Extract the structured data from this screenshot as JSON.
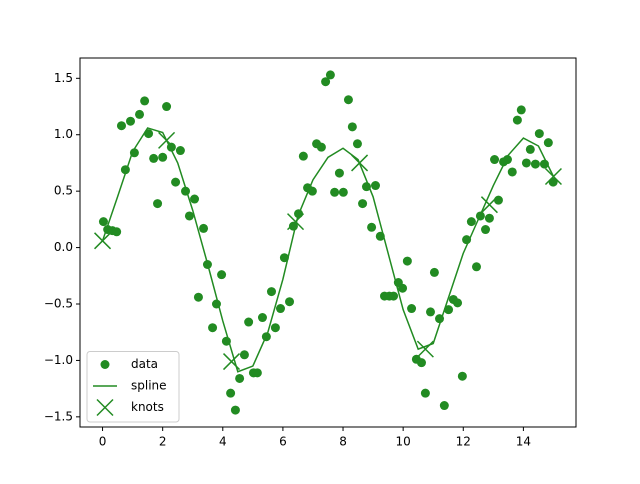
{
  "chart_data": {
    "type": "scatter",
    "xlim": [
      -0.75,
      15.75
    ],
    "ylim": [
      -1.59,
      1.68
    ],
    "xticks": [
      0,
      2,
      4,
      6,
      8,
      10,
      12,
      14
    ],
    "yticks": [
      {
        "value": -1.5,
        "label": "−1.5"
      },
      {
        "value": -1.0,
        "label": "−1.0"
      },
      {
        "value": -0.5,
        "label": "−0.5"
      },
      {
        "value": 0.0,
        "label": "0.0"
      },
      {
        "value": 0.5,
        "label": "0.5"
      },
      {
        "value": 1.0,
        "label": "1.0"
      },
      {
        "value": 1.5,
        "label": "1.5"
      }
    ],
    "grid": false,
    "legend": "lower left",
    "series": [
      {
        "name": "data",
        "type": "scatter",
        "color": "#228b22",
        "x": [
          0.03,
          0.17,
          0.33,
          0.47,
          0.63,
          0.76,
          0.93,
          1.06,
          1.23,
          1.4,
          1.53,
          1.7,
          1.83,
          2.0,
          2.13,
          2.29,
          2.43,
          2.59,
          2.76,
          2.89,
          3.06,
          3.19,
          3.36,
          3.49,
          3.66,
          3.79,
          3.96,
          4.12,
          4.26,
          4.42,
          4.56,
          4.72,
          4.86,
          5.02,
          5.15,
          5.32,
          5.45,
          5.62,
          5.75,
          5.92,
          6.05,
          6.22,
          6.35,
          6.52,
          6.68,
          6.82,
          6.98,
          7.12,
          7.28,
          7.42,
          7.58,
          7.72,
          7.88,
          8.01,
          8.18,
          8.31,
          8.48,
          8.65,
          8.78,
          8.95,
          9.08,
          9.24,
          9.38,
          9.54,
          9.68,
          9.84,
          9.98,
          10.14,
          10.28,
          10.44,
          10.61,
          10.74,
          10.91,
          11.04,
          11.21,
          11.37,
          11.51,
          11.67,
          11.81,
          11.97,
          12.11,
          12.27,
          12.44,
          12.57,
          12.74,
          12.87,
          13.04,
          13.17,
          13.34,
          13.47,
          13.63,
          13.8,
          13.93,
          14.1,
          14.23,
          14.4,
          14.53,
          14.7,
          14.83,
          14.99
        ],
        "values": [
          0.23,
          0.16,
          0.15,
          0.14,
          1.08,
          0.69,
          1.12,
          0.84,
          1.18,
          1.3,
          1.01,
          0.79,
          0.39,
          0.8,
          1.25,
          0.89,
          0.58,
          0.86,
          0.5,
          0.28,
          0.43,
          -0.44,
          0.17,
          -0.15,
          -0.71,
          -0.5,
          -0.24,
          -0.83,
          -1.29,
          -1.44,
          -1.16,
          -0.95,
          -0.66,
          -1.11,
          -1.11,
          -0.62,
          -0.79,
          -0.39,
          -0.71,
          -0.54,
          -0.09,
          -0.48,
          0.19,
          0.3,
          0.81,
          0.53,
          0.5,
          0.92,
          0.89,
          1.47,
          1.53,
          0.49,
          0.66,
          0.49,
          1.31,
          1.07,
          0.92,
          0.39,
          0.54,
          0.18,
          0.55,
          0.1,
          -0.43,
          -0.43,
          -0.43,
          -0.31,
          -0.36,
          -0.12,
          -0.54,
          -0.99,
          -1.02,
          -1.29,
          -0.57,
          -0.22,
          -0.63,
          -1.4,
          -0.55,
          -0.46,
          -0.49,
          -1.14,
          0.07,
          0.23,
          -0.17,
          0.28,
          0.16,
          0.26,
          0.78,
          0.42,
          0.76,
          0.78,
          0.67,
          1.13,
          1.22,
          0.75,
          0.87,
          0.74,
          1.01,
          0.74,
          0.93,
          0.58
        ]
      },
      {
        "name": "spline",
        "type": "line",
        "color": "#228b22",
        "x": [
          0,
          0.5,
          1,
          1.5,
          2,
          2.5,
          3,
          3.5,
          4,
          4.5,
          5,
          5.5,
          6,
          6.5,
          7,
          7.5,
          8,
          8.5,
          9,
          9.5,
          10,
          10.5,
          11,
          11.5,
          12,
          12.5,
          13,
          13.5,
          14,
          14.5,
          15
        ],
        "values": [
          0.06,
          0.45,
          0.85,
          1.06,
          1.02,
          0.75,
          0.33,
          -0.15,
          -0.65,
          -1.1,
          -1.05,
          -0.75,
          -0.28,
          0.28,
          0.6,
          0.8,
          0.88,
          0.78,
          0.45,
          -0.05,
          -0.55,
          -0.9,
          -0.85,
          -0.45,
          -0.05,
          0.25,
          0.55,
          0.82,
          0.97,
          0.9,
          0.63
        ]
      },
      {
        "name": "knots",
        "type": "x-marker",
        "color": "#228b22",
        "x": [
          0,
          2.13,
          4.29,
          6.42,
          8.55,
          10.74,
          12.87,
          15.0
        ],
        "values": [
          0.06,
          0.95,
          -1.01,
          0.23,
          0.75,
          -0.9,
          0.38,
          0.63
        ]
      }
    ]
  }
}
